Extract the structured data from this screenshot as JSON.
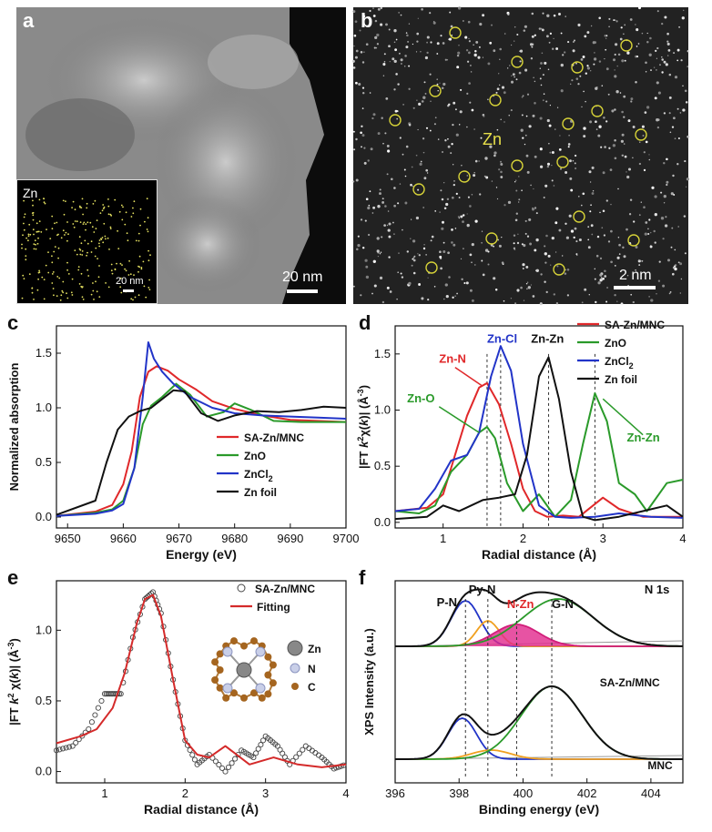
{
  "panels": {
    "a": {
      "label": "a",
      "scale_bar": "20 nm",
      "inset_label": "Zn",
      "inset_scale_bar": "20 nm"
    },
    "b": {
      "label": "b",
      "element_label": "Zn",
      "scale_bar": "2 nm"
    },
    "c": {
      "label": "c"
    },
    "d": {
      "label": "d"
    },
    "e": {
      "label": "e"
    },
    "f": {
      "label": "f"
    }
  },
  "chart_data": [
    {
      "id": "c",
      "type": "line",
      "xlabel": "Energy (eV)",
      "ylabel": "Normalized absorption",
      "xlim": [
        9648,
        9700
      ],
      "ylim": [
        -0.1,
        1.75
      ],
      "xticks": [
        9650,
        9660,
        9670,
        9680,
        9690,
        9700
      ],
      "yticks": [
        0.0,
        0.5,
        1.0,
        1.5
      ],
      "legend_position": "bottom-right",
      "series": [
        {
          "name": "SA-Zn/MNC",
          "color": "#e0282a",
          "x": [
            9648,
            9655,
            9658,
            9660,
            9661.5,
            9663,
            9664.5,
            9666,
            9668,
            9670,
            9673,
            9676,
            9680,
            9685,
            9690,
            9695,
            9700
          ],
          "y": [
            0.01,
            0.05,
            0.11,
            0.3,
            0.6,
            1.1,
            1.33,
            1.38,
            1.34,
            1.26,
            1.17,
            1.06,
            0.99,
            0.93,
            0.89,
            0.88,
            0.87
          ]
        },
        {
          "name": "ZnO",
          "color": "#2a9a2a",
          "x": [
            9648,
            9655,
            9658,
            9660,
            9662,
            9663.5,
            9665,
            9667,
            9669.5,
            9672,
            9675,
            9678,
            9680,
            9683,
            9687,
            9692,
            9700
          ],
          "y": [
            0.01,
            0.04,
            0.07,
            0.15,
            0.45,
            0.85,
            1.02,
            1.1,
            1.22,
            1.12,
            0.92,
            0.96,
            1.04,
            0.98,
            0.88,
            0.87,
            0.87
          ]
        },
        {
          "name": "ZnCl2",
          "color": "#2234c8",
          "x": [
            9648,
            9655,
            9658,
            9660,
            9662,
            9663.5,
            9664.5,
            9665.5,
            9667,
            9669,
            9672,
            9676,
            9680,
            9685,
            9690,
            9695,
            9700
          ],
          "y": [
            0.01,
            0.03,
            0.06,
            0.12,
            0.45,
            1.1,
            1.6,
            1.45,
            1.33,
            1.22,
            1.1,
            1.0,
            0.95,
            0.93,
            0.92,
            0.91,
            0.9
          ]
        },
        {
          "name": "Zn foil",
          "color": "#111111",
          "x": [
            9648,
            9655,
            9657,
            9659,
            9661,
            9663,
            9665,
            9667,
            9669,
            9671,
            9674,
            9677,
            9680,
            9684,
            9688,
            9692,
            9696,
            9700
          ],
          "y": [
            0.02,
            0.15,
            0.5,
            0.8,
            0.92,
            0.97,
            1.0,
            1.08,
            1.16,
            1.15,
            0.95,
            0.88,
            0.93,
            0.97,
            0.96,
            0.98,
            1.01,
            1.0
          ]
        }
      ]
    },
    {
      "id": "d",
      "type": "line",
      "xlabel": "Radial distance (Å)",
      "ylabel": "|FT k2χ(k)| (Å-3)",
      "xlim": [
        0.4,
        4.0
      ],
      "ylim": [
        -0.05,
        1.75
      ],
      "xticks": [
        1,
        2,
        3,
        4
      ],
      "yticks": [
        0.0,
        0.5,
        1.0,
        1.5
      ],
      "legend_position": "top-right",
      "series": [
        {
          "name": "SA-Zn/MNC",
          "color": "#e0282a",
          "x": [
            0.4,
            0.8,
            1.0,
            1.15,
            1.3,
            1.45,
            1.55,
            1.7,
            1.85,
            2.0,
            2.15,
            2.3,
            2.5,
            2.7,
            3.0,
            3.2,
            3.5,
            4.0
          ],
          "y": [
            0.1,
            0.13,
            0.25,
            0.6,
            0.95,
            1.2,
            1.24,
            1.05,
            0.7,
            0.3,
            0.1,
            0.05,
            0.06,
            0.05,
            0.22,
            0.12,
            0.05,
            0.05
          ]
        },
        {
          "name": "ZnO",
          "color": "#2a9a2a",
          "x": [
            0.4,
            0.7,
            0.9,
            1.1,
            1.3,
            1.45,
            1.55,
            1.65,
            1.8,
            2.0,
            2.2,
            2.4,
            2.6,
            2.75,
            2.9,
            3.05,
            3.2,
            3.4,
            3.55,
            3.8,
            4.0
          ],
          "y": [
            0.1,
            0.08,
            0.15,
            0.45,
            0.6,
            0.8,
            0.85,
            0.75,
            0.35,
            0.1,
            0.25,
            0.05,
            0.2,
            0.7,
            1.15,
            0.9,
            0.35,
            0.25,
            0.1,
            0.35,
            0.38
          ]
        },
        {
          "name": "ZnCl2",
          "color": "#2234c8",
          "x": [
            0.4,
            0.7,
            0.9,
            1.1,
            1.3,
            1.45,
            1.6,
            1.72,
            1.85,
            2.0,
            2.2,
            2.4,
            2.6,
            2.9,
            3.2,
            3.6,
            4.0
          ],
          "y": [
            0.1,
            0.12,
            0.3,
            0.55,
            0.6,
            0.8,
            1.3,
            1.57,
            1.35,
            0.7,
            0.15,
            0.05,
            0.04,
            0.05,
            0.08,
            0.05,
            0.04
          ]
        },
        {
          "name": "Zn foil",
          "color": "#111111",
          "x": [
            0.4,
            0.8,
            1.0,
            1.2,
            1.5,
            1.7,
            1.9,
            2.05,
            2.2,
            2.32,
            2.45,
            2.6,
            2.75,
            2.9,
            3.2,
            3.5,
            3.8,
            4.0
          ],
          "y": [
            0.03,
            0.05,
            0.15,
            0.1,
            0.2,
            0.22,
            0.25,
            0.6,
            1.3,
            1.47,
            1.1,
            0.45,
            0.05,
            0.02,
            0.05,
            0.1,
            0.15,
            0.05
          ]
        }
      ],
      "annotations": [
        {
          "text": "Zn-N",
          "color": "#e0282a"
        },
        {
          "text": "Zn-Cl",
          "color": "#2234c8"
        },
        {
          "text": "Zn-Zn",
          "color": "#111111"
        },
        {
          "text": "Zn-O",
          "color": "#2a9a2a"
        },
        {
          "text": "Zn-Zn",
          "color": "#2a9a2a"
        }
      ]
    },
    {
      "id": "e",
      "type": "line",
      "xlabel": "Radial distance (Å)",
      "ylabel": "|FT k2χ(k)| (Å-3)",
      "xlim": [
        0.4,
        4.0
      ],
      "ylim": [
        -0.08,
        1.35
      ],
      "xticks": [
        1,
        2,
        3,
        4
      ],
      "yticks": [
        0.0,
        0.5,
        1.0
      ],
      "legend_position": "top-right",
      "series": [
        {
          "name": "SA-Zn/MNC",
          "color": "#555555",
          "style": "open-circles",
          "x": [
            0.4,
            0.6,
            0.8,
            1.0,
            1.1,
            1.2,
            1.35,
            1.5,
            1.6,
            1.7,
            1.85,
            2.0,
            2.15,
            2.3,
            2.5,
            2.7,
            2.85,
            3.0,
            3.15,
            3.3,
            3.5,
            3.7,
            3.85,
            4.0
          ],
          "y": [
            0.15,
            0.18,
            0.3,
            0.55,
            0.55,
            0.55,
            0.95,
            1.22,
            1.27,
            1.12,
            0.65,
            0.22,
            0.05,
            0.12,
            0.0,
            0.15,
            0.1,
            0.25,
            0.18,
            0.05,
            0.18,
            0.1,
            0.02,
            0.05
          ]
        },
        {
          "name": "Fitting",
          "color": "#d42a2a",
          "x": [
            0.4,
            0.7,
            0.9,
            1.1,
            1.25,
            1.4,
            1.5,
            1.6,
            1.7,
            1.85,
            2.0,
            2.15,
            2.3,
            2.5,
            2.8,
            3.1,
            3.4,
            3.7,
            4.0
          ],
          "y": [
            0.2,
            0.25,
            0.3,
            0.45,
            0.7,
            1.05,
            1.22,
            1.25,
            1.1,
            0.65,
            0.22,
            0.12,
            0.1,
            0.18,
            0.05,
            0.1,
            0.05,
            0.03,
            0.05
          ]
        }
      ],
      "inset_legend": [
        "Zn",
        "N",
        "C"
      ]
    },
    {
      "id": "f",
      "type": "line",
      "xlabel": "Binding energy (eV)",
      "ylabel": "XPS Intensity (a.u.)",
      "xlim": [
        396,
        405
      ],
      "xticks": [
        396,
        398,
        400,
        402,
        404
      ],
      "title_text": "N 1s",
      "peak_labels": [
        {
          "text": "P-N",
          "color": "#111111"
        },
        {
          "text": "Py-N",
          "color": "#111111"
        },
        {
          "text": "N-Zn",
          "color": "#e0282a"
        },
        {
          "text": "G-N",
          "color": "#111111"
        }
      ],
      "sample_labels": [
        "SA-Zn/MNC",
        "MNC"
      ],
      "peak_positions": [
        398.2,
        398.9,
        399.8,
        400.9
      ]
    }
  ]
}
